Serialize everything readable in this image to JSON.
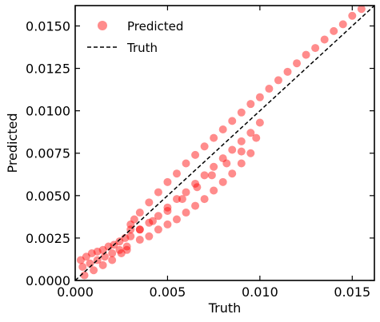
{
  "chart_data": {
    "type": "scatter",
    "xlabel": "Truth",
    "ylabel": "Predicted",
    "xlim": [
      0.0,
      0.0162
    ],
    "ylim": [
      0.0,
      0.0162
    ],
    "xticks": [
      "0.000",
      "0.005",
      "0.010",
      "0.015"
    ],
    "xtick_values": [
      0.0,
      0.005,
      0.01,
      0.015
    ],
    "yticks": [
      "0.0000",
      "0.0025",
      "0.0050",
      "0.0075",
      "0.0100",
      "0.0125",
      "0.0150"
    ],
    "ytick_values": [
      0.0,
      0.0025,
      0.005,
      0.0075,
      0.01,
      0.0125,
      0.015
    ],
    "grid": false,
    "legend_position": "top-left",
    "series": [
      {
        "name": "Predicted",
        "kind": "scatter",
        "color": "#ff0000",
        "opacity": 0.45,
        "x": [
          0.0003,
          0.0006,
          0.0009,
          0.0012,
          0.0015,
          0.0018,
          0.0021,
          0.0024,
          0.0027,
          0.003,
          0.0004,
          0.0008,
          0.0012,
          0.0016,
          0.002,
          0.0024,
          0.0028,
          0.0005,
          0.001,
          0.0015,
          0.002,
          0.0025,
          0.0028,
          0.003,
          0.0032,
          0.0035,
          0.004,
          0.0045,
          0.005,
          0.0055,
          0.006,
          0.0065,
          0.007,
          0.0075,
          0.008,
          0.0085,
          0.009,
          0.0095,
          0.01,
          0.0105,
          0.011,
          0.0115,
          0.012,
          0.0125,
          0.013,
          0.0135,
          0.014,
          0.0145,
          0.015,
          0.0155,
          0.016,
          0.003,
          0.0035,
          0.004,
          0.0045,
          0.005,
          0.0055,
          0.006,
          0.0065,
          0.007,
          0.0075,
          0.008,
          0.0085,
          0.009,
          0.0095,
          0.01,
          0.0035,
          0.004,
          0.0045,
          0.005,
          0.0055,
          0.006,
          0.0065,
          0.007,
          0.0075,
          0.008,
          0.0085,
          0.009,
          0.0095,
          0.0035,
          0.0042,
          0.005,
          0.0058,
          0.0066,
          0.0074,
          0.0082,
          0.009,
          0.0098
        ],
        "y": [
          0.0012,
          0.0014,
          0.0016,
          0.0017,
          0.0018,
          0.002,
          0.0021,
          0.0023,
          0.0025,
          0.003,
          0.0008,
          0.001,
          0.0012,
          0.0014,
          0.0016,
          0.0018,
          0.002,
          0.0003,
          0.0006,
          0.0009,
          0.0012,
          0.0016,
          0.0018,
          0.0033,
          0.0036,
          0.004,
          0.0046,
          0.0052,
          0.0058,
          0.0063,
          0.0069,
          0.0074,
          0.0079,
          0.0084,
          0.0089,
          0.0094,
          0.0099,
          0.0104,
          0.0108,
          0.0113,
          0.0118,
          0.0123,
          0.0128,
          0.0133,
          0.0137,
          0.0142,
          0.0147,
          0.0151,
          0.0156,
          0.016,
          0.0164,
          0.0026,
          0.003,
          0.0034,
          0.0038,
          0.0043,
          0.0048,
          0.0052,
          0.0057,
          0.0062,
          0.0067,
          0.0072,
          0.0077,
          0.0082,
          0.0087,
          0.0093,
          0.0024,
          0.0026,
          0.003,
          0.0033,
          0.0036,
          0.004,
          0.0044,
          0.0048,
          0.0053,
          0.0058,
          0.0063,
          0.0069,
          0.0075,
          0.003,
          0.0035,
          0.0041,
          0.0048,
          0.0055,
          0.0062,
          0.0069,
          0.0076,
          0.0084
        ]
      },
      {
        "name": "Truth",
        "kind": "line",
        "style": "dashed",
        "color": "#000000",
        "x": [
          0.0,
          0.0162
        ],
        "y": [
          0.0,
          0.0162
        ]
      }
    ]
  }
}
